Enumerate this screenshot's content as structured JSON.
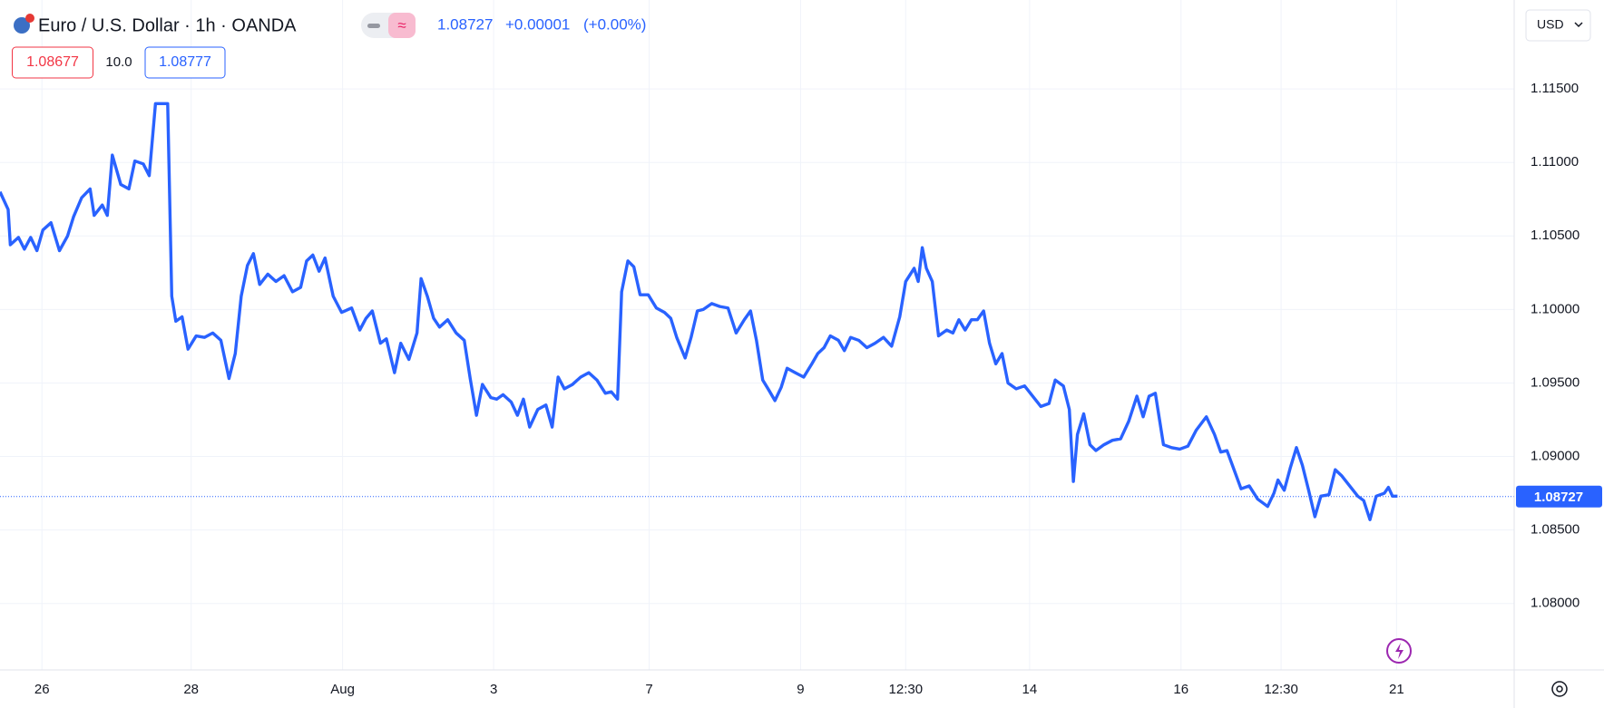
{
  "header": {
    "title": "Euro / U.S. Dollar · 1h · OANDA",
    "last": "1.08727",
    "change": "+0.00001",
    "change_pct": "(+0.00%)",
    "sell": "1.08677",
    "spread": "10.0",
    "buy": "1.08777",
    "currency": "USD"
  },
  "chart_data": {
    "type": "line",
    "color": "#2962ff",
    "grid": true,
    "last_value": 1.08727,
    "x": [
      0,
      2.6,
      3.3,
      5.9,
      7.8,
      9.8,
      11.8,
      13.7,
      16.3,
      19,
      21.6,
      23.5,
      26.1,
      28.8,
      30.1,
      32.7,
      34.3,
      35.9,
      38.6,
      41.2,
      43.1,
      45.8,
      47.7,
      49.7,
      52.3,
      53.6,
      54.9,
      56.2,
      58.2,
      60.1,
      62.7,
      65.4,
      68,
      70.6,
      73.2,
      75.2,
      77.1,
      79.1,
      81,
      83,
      85.6,
      88.2,
      90.8,
      93.5,
      96.1,
      98,
      100,
      102,
      103.9,
      106.5,
      109.2,
      112.4,
      115,
      117,
      119,
      121.6,
      123.5,
      126.1,
      128.1,
      130.7,
      133.3,
      134.6,
      136.6,
      138.6,
      140.5,
      143.1,
      145.8,
      148.4,
      150.3,
      152.3,
      154.2,
      156.9,
      158.8,
      160.8,
      163.4,
      165.4,
      167.3,
      169.3,
      171.9,
      174.5,
      176.5,
      178.4,
      180.4,
      183,
      185.6,
      188.2,
      190.8,
      193.5,
      195.4,
      197.4,
      198.7,
      200.7,
      202.6,
      204.6,
      207.2,
      209.8,
      212.4,
      214.4,
      216.3,
      219,
      220.9,
      222.9,
      224.8,
      227.5,
      230.1,
      232.7,
      235.3,
      237.9,
      239.9,
      241.8,
      243.8,
      245.8,
      247.7,
      249.7,
      251.6,
      254.2,
      256.9,
      259.5,
      261.4,
      263.4,
      265.4,
      268,
      269.9,
      271.9,
      274.5,
      277.1,
      279.7,
      282.4,
      285,
      287.6,
      289.5,
      292.2,
      293.5,
      294.8,
      296.1,
      298,
      300,
      302.6,
      304.6,
      306.5,
      308.5,
      310.5,
      312.4,
      314.4,
      316.3,
      318.3,
      320.3,
      322.2,
      324.8,
      327.5,
      330.1,
      332.7,
      335.3,
      337.3,
      339.9,
      341.8,
      343.1,
      344.4,
      346.4,
      348.4,
      350.3,
      352.9,
      355.6,
      358.2,
      360.8,
      363.4,
      365.4,
      367.3,
      369.3,
      371.9,
      374.5,
      377.1,
      379.7,
      382.4,
      385.6,
      388.2,
      390.2,
      392.2,
      394.8,
      396.7,
      399.3,
      402,
      405.2,
      407.2,
      408.5,
      410.5,
      412.4,
      414.4,
      416.3,
      418.3,
      420.3,
      422.2,
      424.8,
      426.8,
      428.8,
      431.4,
      434,
      435.9,
      437.9,
      439.9,
      442.5,
      443.8,
      445.1,
      446.7
    ],
    "values": [
      1.108,
      1.1068,
      1.1044,
      1.1049,
      1.1041,
      1.1049,
      1.104,
      1.1054,
      1.1059,
      1.104,
      1.105,
      1.1063,
      1.1076,
      1.1082,
      1.1064,
      1.1071,
      1.1064,
      1.1105,
      1.1085,
      1.1082,
      1.1101,
      1.1099,
      1.1091,
      1.114,
      1.114,
      1.114,
      1.1009,
      1.0992,
      1.0995,
      1.0973,
      1.0982,
      1.0981,
      1.0984,
      1.0979,
      1.0953,
      1.097,
      1.1009,
      1.103,
      1.1038,
      1.1017,
      1.1024,
      1.1019,
      1.1023,
      1.1012,
      1.1015,
      1.1033,
      1.1037,
      1.1026,
      1.1035,
      1.1009,
      1.0998,
      1.1001,
      1.0986,
      1.0994,
      1.0999,
      1.0977,
      1.098,
      1.0957,
      1.0977,
      1.0966,
      1.0984,
      1.1021,
      1.1009,
      1.0994,
      1.0988,
      1.0993,
      1.0984,
      1.0979,
      1.0953,
      1.0928,
      1.0949,
      1.094,
      1.0939,
      1.0942,
      1.0937,
      1.0928,
      1.0939,
      1.092,
      1.0932,
      1.0935,
      1.092,
      1.0954,
      1.0946,
      1.0949,
      1.0954,
      1.0957,
      1.0952,
      1.0943,
      1.0944,
      1.0939,
      1.1012,
      1.1033,
      1.1029,
      1.101,
      1.101,
      1.1001,
      1.0998,
      1.0994,
      1.0981,
      1.0967,
      1.0981,
      1.0999,
      1.1,
      1.1004,
      1.1002,
      1.1001,
      1.0984,
      1.0993,
      1.0999,
      1.0979,
      1.0952,
      1.0945,
      1.0938,
      1.0947,
      1.096,
      1.0957,
      1.0954,
      1.0963,
      1.097,
      1.0974,
      1.0982,
      1.0979,
      1.0972,
      1.0981,
      1.0979,
      1.0974,
      1.0977,
      1.0981,
      1.0975,
      1.0995,
      1.1019,
      1.1028,
      1.1019,
      1.1042,
      1.1028,
      1.1019,
      1.0982,
      1.0986,
      1.0984,
      1.0993,
      1.0986,
      1.0993,
      1.0993,
      1.0999,
      1.0977,
      1.0963,
      1.097,
      1.095,
      1.0946,
      1.0948,
      1.0941,
      1.0934,
      1.0936,
      1.0952,
      1.0948,
      1.0932,
      1.0883,
      1.0915,
      1.0929,
      1.0908,
      1.0904,
      1.0908,
      1.0911,
      1.0912,
      1.0924,
      1.0941,
      1.0927,
      1.0941,
      1.0943,
      1.0908,
      1.0906,
      1.0905,
      1.0907,
      1.0918,
      1.0927,
      1.0915,
      1.0903,
      1.0904,
      1.0889,
      1.0878,
      1.088,
      1.0871,
      1.0866,
      1.0875,
      1.0884,
      1.0877,
      1.0892,
      1.0906,
      1.0894,
      1.0877,
      1.0859,
      1.0873,
      1.0874,
      1.0891,
      1.0887,
      1.088,
      1.0873,
      1.087,
      1.0857,
      1.0873,
      1.0875,
      1.0879,
      1.0873,
      1.0873
    ],
    "xlim": [
      0,
      484
    ],
    "xticks": [
      {
        "value": 13.4,
        "label": "26"
      },
      {
        "value": 61.1,
        "label": "28"
      },
      {
        "value": 109.5,
        "label": "Aug"
      },
      {
        "value": 157.8,
        "label": "3"
      },
      {
        "value": 207.5,
        "label": "7"
      },
      {
        "value": 255.9,
        "label": "9"
      },
      {
        "value": 289.5,
        "label": "12:30"
      },
      {
        "value": 329.1,
        "label": "14"
      },
      {
        "value": 377.5,
        "label": "16"
      },
      {
        "value": 409.5,
        "label": "12:30"
      },
      {
        "value": 446.4,
        "label": "21"
      }
    ],
    "ylim": [
      1.07548,
      1.12105
    ],
    "yticks": [
      {
        "value": 1.08,
        "label": "1.08000"
      },
      {
        "value": 1.085,
        "label": "1.08500"
      },
      {
        "value": 1.09,
        "label": "1.09000"
      },
      {
        "value": 1.095,
        "label": "1.09500"
      },
      {
        "value": 1.1,
        "label": "1.10000"
      },
      {
        "value": 1.105,
        "label": "1.10500"
      },
      {
        "value": 1.11,
        "label": "1.11000"
      },
      {
        "value": 1.115,
        "label": "1.11500"
      }
    ]
  }
}
